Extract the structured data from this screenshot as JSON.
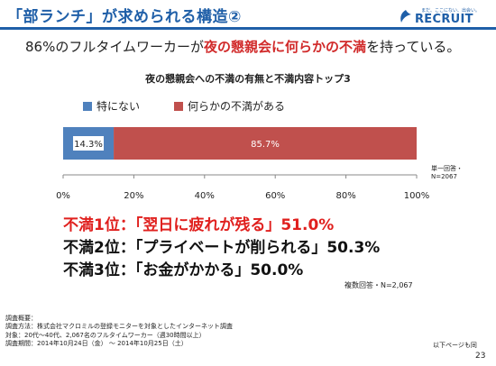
{
  "slide": {
    "title": "「部ランチ」が求められる構造②",
    "headline_pre": "86%のフルタイムワーカーが",
    "headline_highlight": "夜の懇親会に何らかの不満",
    "headline_post": "を持っている。",
    "page_number": "23",
    "next_page_note": "以下ページも同",
    "colors": {
      "title_blue": "#1f5fa8",
      "highlight_red": "#d12a2a"
    }
  },
  "logo": {
    "text": "RECRUIT",
    "tagline": "まだ、ここにない、出会い。",
    "icon": "recruit-logo-mark-icon"
  },
  "chart_data": {
    "type": "bar",
    "orientation": "horizontal-stacked",
    "title": "夜の懇親会への不満の有無と不満内容トップ3",
    "series": [
      {
        "name": "特にない",
        "value": 14.3,
        "label": "14.3%",
        "color": "#4f81bd"
      },
      {
        "name": "何らかの不満がある",
        "value": 85.7,
        "label": "85.7%",
        "color": "#c0504d"
      }
    ],
    "x_ticks": [
      "0%",
      "20%",
      "40%",
      "60%",
      "80%",
      "100%"
    ],
    "xlim": [
      0,
      100
    ],
    "legend": "top-left",
    "grid": false,
    "note_line1": "単一回答・",
    "note_line2": "N=2067"
  },
  "ranking": [
    {
      "label": "不満1位：「翌日に疲れが残る」51.0%"
    },
    {
      "label": "不満2位：「プライベートが削られる」50.3%"
    },
    {
      "label": "不満3位：「お金がかかる」50.0%"
    }
  ],
  "ranking_note": "複数回答・N=2,067",
  "survey": {
    "heading": "調査概要：",
    "method": "調査方法：株式会社マクロミルの登録モニターを対象としたインターネット調査",
    "target": "対象：20代～40代、2,067名のフルタイムワーカー（週30時間以上）",
    "period": "調査期間：2014年10月24日（金） ～ 2014年10月25日（土）"
  }
}
